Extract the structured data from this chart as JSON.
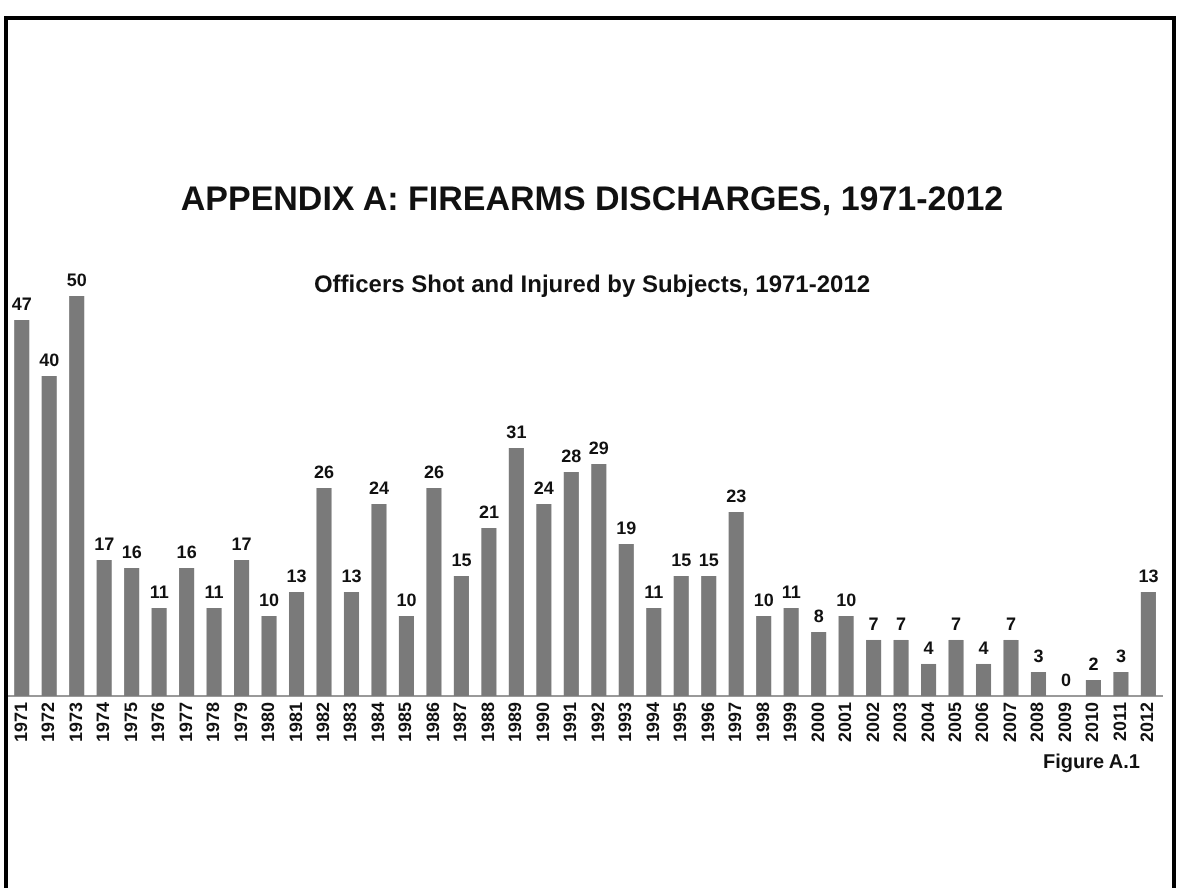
{
  "chart_data": {
    "type": "bar",
    "title": "APPENDIX A: FIREARMS DISCHARGES, 1971-2012",
    "subtitle": "Officers Shot and Injured by Subjects, 1971-2012",
    "annotations": [
      "Figure A.1"
    ],
    "categories": [
      "1971",
      "1972",
      "1973",
      "1974",
      "1975",
      "1976",
      "1977",
      "1978",
      "1979",
      "1980",
      "1981",
      "1982",
      "1983",
      "1984",
      "1985",
      "1986",
      "1987",
      "1988",
      "1989",
      "1990",
      "1991",
      "1992",
      "1993",
      "1994",
      "1995",
      "1996",
      "1997",
      "1998",
      "1999",
      "2000",
      "2001",
      "2002",
      "2003",
      "2004",
      "2005",
      "2006",
      "2007",
      "2008",
      "2009",
      "2010",
      "2011",
      "2012"
    ],
    "values": [
      47,
      40,
      50,
      17,
      16,
      11,
      16,
      11,
      17,
      10,
      13,
      26,
      13,
      24,
      10,
      26,
      15,
      21,
      31,
      24,
      28,
      29,
      19,
      11,
      15,
      15,
      23,
      10,
      11,
      8,
      10,
      7,
      7,
      4,
      7,
      4,
      7,
      3,
      0,
      2,
      3,
      13
    ],
    "color": "#7a7a7a",
    "data_labels": true,
    "grid": false,
    "legend": false
  }
}
